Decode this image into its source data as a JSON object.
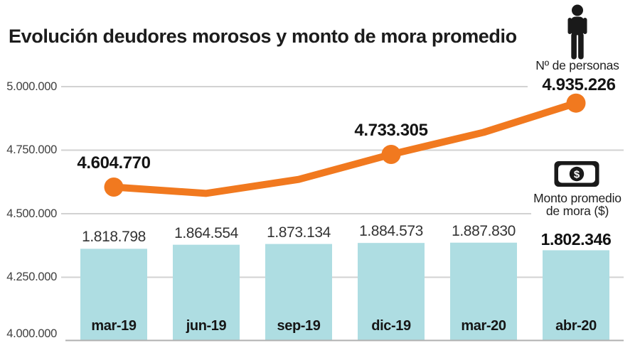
{
  "title": "Evolución deudores morosos y monto de mora promedio",
  "legend": {
    "persons_label": "Nº de personas",
    "amount_label_line1": "Monto promedio",
    "amount_label_line2": "de mora ($)",
    "amount_icon_symbol": "$"
  },
  "colors": {
    "line": "#f1791f",
    "bar": "#aedde2",
    "grid": "#d2d2d2",
    "axis": "#b0b0b0",
    "icon": "#1a1a1a"
  },
  "chart_data": {
    "type": "combo",
    "subtypes": [
      "line",
      "bar"
    ],
    "title": "Evolución deudores morosos y monto de mora promedio",
    "categories": [
      "mar-19",
      "jun-19",
      "sep-19",
      "dic-19",
      "mar-20",
      "abr-20"
    ],
    "y_axis": {
      "min": 4000000,
      "max": 5000000,
      "tick_labels": [
        "5.000.000",
        "4.750.000",
        "4.500.000",
        "4.250.000",
        "4.000.000"
      ],
      "tick_values": [
        5000000,
        4750000,
        4500000,
        4250000,
        4000000
      ]
    },
    "grid": true,
    "legend_position": "right",
    "series": [
      {
        "name": "Nº de personas",
        "type": "line",
        "color": "#f1791f",
        "values": [
          4604770,
          4580000,
          4635000,
          4733305,
          4820000,
          4935226
        ],
        "estimated_indices": [
          1,
          2,
          4
        ],
        "labeled_points": [
          {
            "index": 0,
            "label": "4.604.770"
          },
          {
            "index": 3,
            "label": "4.733.305"
          },
          {
            "index": 5,
            "label": "4.935.226"
          }
        ]
      },
      {
        "name": "Monto promedio de mora ($)",
        "type": "bar",
        "color": "#aedde2",
        "values": [
          1818798,
          1864554,
          1873134,
          1884573,
          1887830,
          1802346
        ],
        "value_labels": [
          "1.818.798",
          "1.864.554",
          "1.873.134",
          "1.884.573",
          "1.887.830",
          "1.802.346"
        ],
        "emphasis_index": 5
      }
    ]
  }
}
